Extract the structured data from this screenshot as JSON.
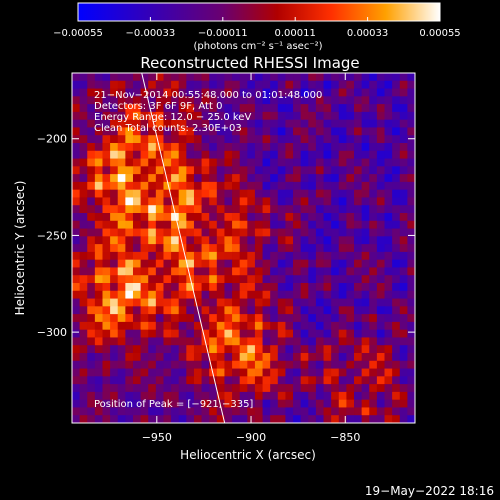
{
  "chart_data": {
    "type": "heatmap",
    "title": "Reconstructed RHESSI Image",
    "xlabel": "Heliocentric X (arcsec)",
    "ylabel": "Heliocentric Y (arcsec)",
    "x_ticks": [
      -950,
      -900,
      -850
    ],
    "y_ticks": [
      -200,
      -250,
      -300
    ],
    "x_tick_labels": [
      "−950",
      "−900",
      "−850"
    ],
    "y_tick_labels": [
      "−200",
      "−250",
      "−300"
    ],
    "xlim": [
      -995,
      -813
    ],
    "ylim": [
      -347,
      -166
    ],
    "colorbar": {
      "min": -0.00055,
      "max": 0.00055,
      "ticks": [
        -0.00055,
        -0.00033,
        -0.00011,
        0.00011,
        0.00033,
        0.00055
      ],
      "tick_labels": [
        "−0.00055",
        "−0.00033",
        "−0.00011",
        "0.00011",
        "0.00033",
        "0.00055"
      ],
      "unit_label": "(photons cm⁻² s⁻¹ asec⁻²)"
    },
    "annotations": [
      "21−Nov−2014 00:55:48.000 to 01:01:48.000",
      "Detectors: 3F 6F 9F, Att 0",
      "Energy Range: 12.0 − 25.0 keV",
      "Clean     Total counts: 2.30E+03"
    ],
    "peak_label": "Position of Peak = [−921,−335]",
    "limb_line": [
      {
        "x": -958,
        "y": -166
      },
      {
        "x": -914,
        "y": -347
      }
    ]
  },
  "footer": {
    "timestamp": "19−May−2022 18:16"
  }
}
